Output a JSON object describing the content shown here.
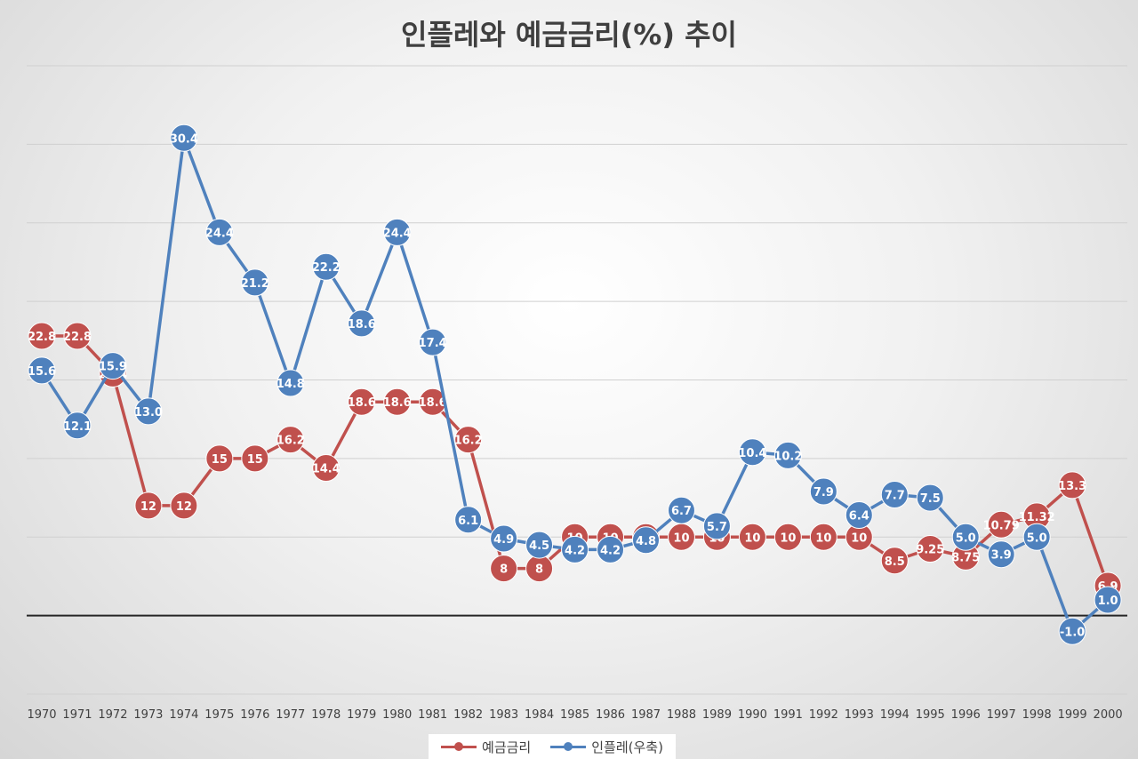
{
  "chart_data": {
    "type": "line",
    "title": "인플레와 예금금리(%) 추이",
    "categories": [
      "1970",
      "1971",
      "1972",
      "1973",
      "1974",
      "1975",
      "1976",
      "1977",
      "1978",
      "1979",
      "1980",
      "1981",
      "1982",
      "1983",
      "1984",
      "1985",
      "1986",
      "1987",
      "1988",
      "1989",
      "1990",
      "1991",
      "1992",
      "1993",
      "1994",
      "1995",
      "1996",
      "1997",
      "1998",
      "1999",
      "2000"
    ],
    "series": [
      {
        "name": "예금금리",
        "color": "#c0504d",
        "axis": "left",
        "values": [
          22.8,
          22.8,
          20.4,
          12,
          12,
          15,
          15,
          16.2,
          14.4,
          18.6,
          18.6,
          18.6,
          16.2,
          8,
          8,
          10,
          10,
          10,
          10,
          10,
          10,
          10,
          10,
          10,
          8.5,
          9.25,
          8.75,
          10.79,
          11.32,
          13.3,
          6.9
        ],
        "labels": [
          "22.8",
          "22.8",
          "20.4",
          "12",
          "12",
          "15",
          "15",
          "16.2",
          "14.4",
          "18.6",
          "18.6",
          "18.6",
          "16.2",
          "8",
          "8",
          "10",
          "10",
          "10",
          "10",
          "10",
          "10",
          "10",
          "10",
          "10",
          "8.5",
          "9.25",
          "8.75",
          "10.79",
          "11.32",
          "13.3",
          "6.9"
        ]
      },
      {
        "name": "인플레(우축)",
        "color": "#4f81bd",
        "axis": "right",
        "values": [
          15.6,
          12.1,
          15.9,
          13.0,
          30.4,
          24.4,
          21.2,
          14.8,
          22.2,
          18.6,
          24.4,
          17.4,
          6.1,
          4.9,
          4.5,
          4.2,
          4.2,
          4.8,
          6.7,
          5.7,
          10.4,
          10.2,
          7.9,
          6.4,
          7.7,
          7.5,
          5.0,
          3.9,
          5.0,
          -1.0,
          1.0
        ],
        "labels": [
          "15.6",
          "12.1",
          "15.9",
          "13.0",
          "30.4",
          "24.4",
          "21.2",
          "14.8",
          "22.2",
          "18.6",
          "24.4",
          "17.4",
          "6.1",
          "4.9",
          "4.5",
          "4.2",
          "4.2",
          "4.8",
          "6.7",
          "5.7",
          "10.4",
          "10.2",
          "7.9",
          "6.4",
          "7.7",
          "7.5",
          "5.0",
          "3.9",
          "5.0",
          "-1.0",
          "1.0"
        ]
      }
    ],
    "y_left_range": [
      0,
      40
    ],
    "y_right_range": [
      -5,
      35
    ],
    "grid": true,
    "legend_position": "bottom"
  }
}
